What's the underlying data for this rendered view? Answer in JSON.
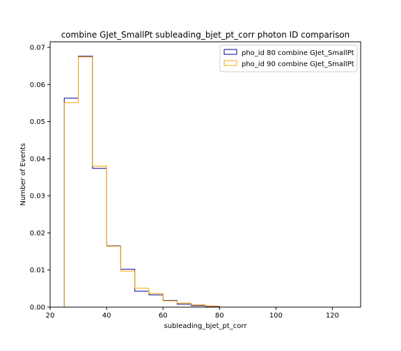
{
  "chart_data": {
    "type": "histogram-step",
    "title": "combine GJet_SmallPt subleading_bjet_pt_corr photon ID comparison",
    "xlabel": "subleading_bjet_pt_corr",
    "ylabel": "Number of Events",
    "xlim": [
      20,
      130
    ],
    "ylim": [
      0,
      0.0715
    ],
    "x_ticks": [
      "20",
      "40",
      "60",
      "80",
      "100",
      "120"
    ],
    "y_ticks": [
      "0.00",
      "0.01",
      "0.02",
      "0.03",
      "0.04",
      "0.05",
      "0.06",
      "0.07"
    ],
    "bin_edges": [
      25,
      30,
      35,
      40,
      45,
      50,
      55,
      60,
      65,
      70,
      75,
      80
    ],
    "legend_position": "top-right",
    "series": [
      {
        "name": "pho_id 80 combine GJet_SmallPt",
        "color": "#00008b",
        "values": [
          0.0563,
          0.0676,
          0.0374,
          0.0165,
          0.0102,
          0.0043,
          0.0033,
          0.0018,
          0.0008,
          0.0004,
          0.0002
        ]
      },
      {
        "name": "pho_id 90 combine GJet_SmallPt",
        "color": "#ffa500",
        "values": [
          0.0551,
          0.0674,
          0.038,
          0.0164,
          0.0097,
          0.0051,
          0.0037,
          0.0017,
          0.0011,
          0.0006,
          0.0003
        ]
      }
    ]
  }
}
